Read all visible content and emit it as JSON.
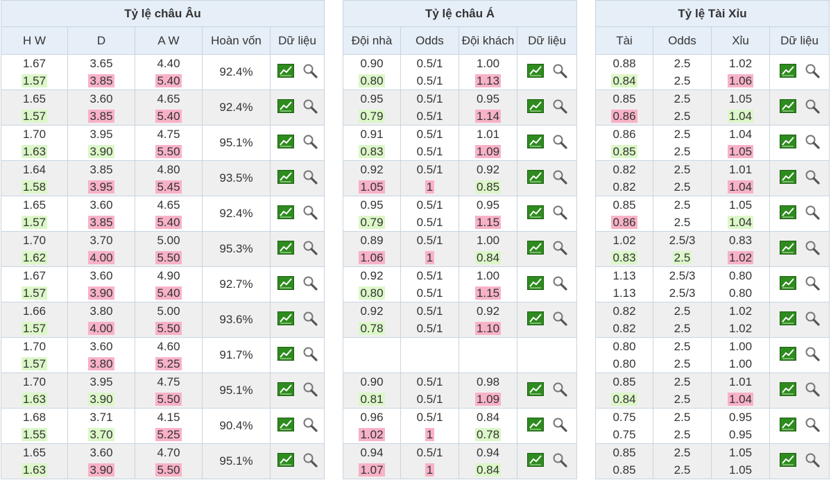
{
  "eu": {
    "title": "Tỷ lệ châu Âu",
    "headers": [
      "H W",
      "D",
      "A W",
      "Hoàn vốn",
      "Dữ liệu"
    ],
    "rows": [
      {
        "hw": [
          "1.67",
          "1.57"
        ],
        "d": [
          "3.65",
          "3.85"
        ],
        "aw": [
          "4.40",
          "5.40"
        ],
        "cls": [
          "",
          "g",
          "",
          "r",
          "",
          "r"
        ],
        "ret": "92.4%"
      },
      {
        "hw": [
          "1.65",
          "1.57"
        ],
        "d": [
          "3.60",
          "3.85"
        ],
        "aw": [
          "4.65",
          "5.40"
        ],
        "cls": [
          "",
          "g",
          "",
          "r",
          "",
          "r"
        ],
        "ret": "92.4%"
      },
      {
        "hw": [
          "1.70",
          "1.63"
        ],
        "d": [
          "3.95",
          "3.90"
        ],
        "aw": [
          "4.75",
          "5.50"
        ],
        "cls": [
          "",
          "g",
          "",
          "g",
          "",
          "r"
        ],
        "ret": "95.1%"
      },
      {
        "hw": [
          "1.64",
          "1.58"
        ],
        "d": [
          "3.85",
          "3.95"
        ],
        "aw": [
          "4.80",
          "5.45"
        ],
        "cls": [
          "",
          "g",
          "",
          "r",
          "",
          "r"
        ],
        "ret": "93.5%"
      },
      {
        "hw": [
          "1.65",
          "1.57"
        ],
        "d": [
          "3.60",
          "3.85"
        ],
        "aw": [
          "4.65",
          "5.40"
        ],
        "cls": [
          "",
          "g",
          "",
          "r",
          "",
          "r"
        ],
        "ret": "92.4%"
      },
      {
        "hw": [
          "1.70",
          "1.62"
        ],
        "d": [
          "3.70",
          "4.00"
        ],
        "aw": [
          "5.00",
          "5.50"
        ],
        "cls": [
          "",
          "g",
          "",
          "r",
          "",
          "r"
        ],
        "ret": "95.3%"
      },
      {
        "hw": [
          "1.67",
          "1.57"
        ],
        "d": [
          "3.60",
          "3.90"
        ],
        "aw": [
          "4.90",
          "5.40"
        ],
        "cls": [
          "",
          "g",
          "",
          "r",
          "",
          "r"
        ],
        "ret": "92.7%"
      },
      {
        "hw": [
          "1.66",
          "1.57"
        ],
        "d": [
          "3.80",
          "4.00"
        ],
        "aw": [
          "5.00",
          "5.50"
        ],
        "cls": [
          "",
          "g",
          "",
          "r",
          "",
          "r"
        ],
        "ret": "93.6%"
      },
      {
        "hw": [
          "1.70",
          "1.57"
        ],
        "d": [
          "3.60",
          "3.80"
        ],
        "aw": [
          "4.60",
          "5.25"
        ],
        "cls": [
          "",
          "g",
          "",
          "r",
          "",
          "r"
        ],
        "ret": "91.7%"
      },
      {
        "hw": [
          "1.70",
          "1.63"
        ],
        "d": [
          "3.95",
          "3.90"
        ],
        "aw": [
          "4.75",
          "5.50"
        ],
        "cls": [
          "",
          "g",
          "",
          "g",
          "",
          "r"
        ],
        "ret": "95.1%"
      },
      {
        "hw": [
          "1.68",
          "1.55"
        ],
        "d": [
          "3.71",
          "3.70"
        ],
        "aw": [
          "4.15",
          "5.25"
        ],
        "cls": [
          "",
          "g",
          "",
          "g",
          "",
          "r"
        ],
        "ret": "90.4%"
      },
      {
        "hw": [
          "1.65",
          "1.63"
        ],
        "d": [
          "3.60",
          "3.90"
        ],
        "aw": [
          "4.70",
          "5.50"
        ],
        "cls": [
          "",
          "g",
          "",
          "r",
          "",
          "r"
        ],
        "ret": "95.1%"
      }
    ]
  },
  "asia": {
    "title": "Tỷ lệ châu Á",
    "headers": [
      "Đội nhà",
      "Odds",
      "Đội khách",
      "Dữ liệu"
    ],
    "rows": [
      {
        "home": [
          "0.90",
          "0.80"
        ],
        "odds": [
          "0.5/1",
          "0.5/1"
        ],
        "away": [
          "1.00",
          "1.13"
        ],
        "cls": [
          "",
          "g",
          "",
          "",
          "",
          "r"
        ]
      },
      {
        "home": [
          "0.95",
          "0.79"
        ],
        "odds": [
          "0.5/1",
          "0.5/1"
        ],
        "away": [
          "0.95",
          "1.14"
        ],
        "cls": [
          "",
          "g",
          "",
          "",
          "",
          "r"
        ]
      },
      {
        "home": [
          "0.91",
          "0.83"
        ],
        "odds": [
          "0.5/1",
          "0.5/1"
        ],
        "away": [
          "1.01",
          "1.09"
        ],
        "cls": [
          "",
          "g",
          "",
          "",
          "",
          "r"
        ]
      },
      {
        "home": [
          "0.92",
          "1.05"
        ],
        "odds": [
          "0.5/1",
          "1"
        ],
        "away": [
          "0.92",
          "0.85"
        ],
        "cls": [
          "",
          "r",
          "",
          "r",
          "",
          "g"
        ]
      },
      {
        "home": [
          "0.95",
          "0.79"
        ],
        "odds": [
          "0.5/1",
          "0.5/1"
        ],
        "away": [
          "0.95",
          "1.15"
        ],
        "cls": [
          "",
          "g",
          "",
          "",
          "",
          "r"
        ]
      },
      {
        "home": [
          "0.89",
          "1.06"
        ],
        "odds": [
          "0.5/1",
          "1"
        ],
        "away": [
          "1.00",
          "0.84"
        ],
        "cls": [
          "",
          "r",
          "",
          "r",
          "",
          "g"
        ]
      },
      {
        "home": [
          "0.92",
          "0.80"
        ],
        "odds": [
          "0.5/1",
          "0.5/1"
        ],
        "away": [
          "1.00",
          "1.15"
        ],
        "cls": [
          "",
          "g",
          "",
          "",
          "",
          "r"
        ]
      },
      {
        "home": [
          "0.92",
          "0.78"
        ],
        "odds": [
          "0.5/1",
          "0.5/1"
        ],
        "away": [
          "0.92",
          "1.10"
        ],
        "cls": [
          "",
          "g",
          "",
          "",
          "",
          "r"
        ]
      },
      {
        "empty": true
      },
      {
        "home": [
          "0.90",
          "0.81"
        ],
        "odds": [
          "0.5/1",
          "0.5/1"
        ],
        "away": [
          "0.98",
          "1.09"
        ],
        "cls": [
          "",
          "g",
          "",
          "",
          "",
          "r"
        ]
      },
      {
        "home": [
          "0.96",
          "1.02"
        ],
        "odds": [
          "0.5/1",
          "1"
        ],
        "away": [
          "0.84",
          "0.78"
        ],
        "cls": [
          "",
          "r",
          "",
          "r",
          "",
          "g"
        ]
      },
      {
        "home": [
          "0.94",
          "1.07"
        ],
        "odds": [
          "0.5/1",
          "1"
        ],
        "away": [
          "0.94",
          "0.84"
        ],
        "cls": [
          "",
          "r",
          "",
          "r",
          "",
          "g"
        ]
      }
    ]
  },
  "ou": {
    "title": "Tỷ lệ Tài Xỉu",
    "headers": [
      "Tài",
      "Odds",
      "Xỉu",
      "Dữ liệu"
    ],
    "rows": [
      {
        "over": [
          "0.88",
          "0.84"
        ],
        "odds": [
          "2.5",
          "2.5"
        ],
        "under": [
          "1.02",
          "1.06"
        ],
        "cls": [
          "",
          "g",
          "",
          "",
          "",
          "r"
        ]
      },
      {
        "over": [
          "0.85",
          "0.86"
        ],
        "odds": [
          "2.5",
          "2.5"
        ],
        "under": [
          "1.05",
          "1.04"
        ],
        "cls": [
          "",
          "r",
          "",
          "",
          "",
          "g"
        ]
      },
      {
        "over": [
          "0.86",
          "0.85"
        ],
        "odds": [
          "2.5",
          "2.5"
        ],
        "under": [
          "1.04",
          "1.05"
        ],
        "cls": [
          "",
          "g",
          "",
          "",
          "",
          "r"
        ]
      },
      {
        "over": [
          "0.82",
          "0.82"
        ],
        "odds": [
          "2.5",
          "2.5"
        ],
        "under": [
          "1.01",
          "1.04"
        ],
        "cls": [
          "",
          "",
          "",
          "",
          "",
          "r"
        ]
      },
      {
        "over": [
          "0.85",
          "0.86"
        ],
        "odds": [
          "2.5",
          "2.5"
        ],
        "under": [
          "1.05",
          "1.04"
        ],
        "cls": [
          "",
          "r",
          "",
          "",
          "",
          "g"
        ]
      },
      {
        "over": [
          "1.02",
          "0.83"
        ],
        "odds": [
          "2.5/3",
          "2.5"
        ],
        "under": [
          "0.83",
          "1.02"
        ],
        "cls": [
          "",
          "g",
          "",
          "g",
          "",
          "r"
        ]
      },
      {
        "over": [
          "1.13",
          "1.13"
        ],
        "odds": [
          "2.5/3",
          "2.5/3"
        ],
        "under": [
          "0.80",
          "0.80"
        ],
        "cls": [
          "",
          "",
          "",
          "",
          "",
          ""
        ]
      },
      {
        "over": [
          "0.82",
          "0.82"
        ],
        "odds": [
          "2.5",
          "2.5"
        ],
        "under": [
          "1.02",
          "1.02"
        ],
        "cls": [
          "",
          "",
          "",
          "",
          "",
          ""
        ]
      },
      {
        "over": [
          "0.80",
          "0.80"
        ],
        "odds": [
          "2.5",
          "2.5"
        ],
        "under": [
          "1.00",
          "1.00"
        ],
        "cls": [
          "",
          "",
          "",
          "",
          "",
          ""
        ]
      },
      {
        "over": [
          "0.85",
          "0.84"
        ],
        "odds": [
          "2.5",
          "2.5"
        ],
        "under": [
          "1.01",
          "1.04"
        ],
        "cls": [
          "",
          "g",
          "",
          "",
          "",
          "r"
        ]
      },
      {
        "over": [
          "0.75",
          "0.75"
        ],
        "odds": [
          "2.5",
          "2.5"
        ],
        "under": [
          "0.95",
          "0.95"
        ],
        "cls": [
          "",
          "",
          "",
          "",
          "",
          ""
        ]
      },
      {
        "over": [
          "0.85",
          "0.85"
        ],
        "odds": [
          "2.5",
          "2.5"
        ],
        "under": [
          "1.05",
          "1.05"
        ],
        "cls": [
          "",
          "",
          "",
          "",
          "",
          ""
        ]
      }
    ]
  },
  "icons": {
    "chart": "line-chart-icon",
    "search": "magnifier-icon"
  },
  "colors": {
    "header_bg": "#e6eef7",
    "row_alt": "#efefef",
    "up": "#dcf7c8",
    "down": "#f8b2c8",
    "chart_green": "#2e8b1e"
  }
}
